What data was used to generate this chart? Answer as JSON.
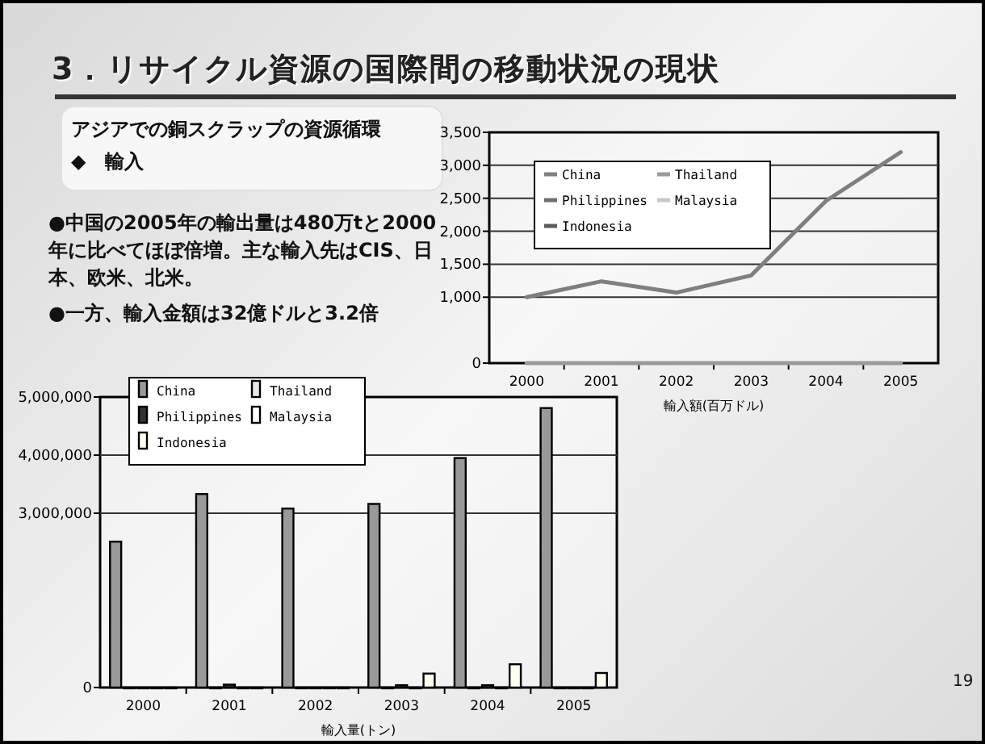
{
  "chart_data": [
    {
      "type": "other",
      "title": "3．リサイクル資源の国際間の移動状況の現状",
      "annotations": [
        "アジアでの銅スクラップの資源循環",
        "◆　輸入",
        "●中国の2005年の輸出量は480万tと2000年に比べてほぼ倍増。主な輸入先はCIS、日本、欧米、北米。",
        "●一方、輸入金額は32億ドルと3.2倍",
        "19"
      ]
    },
    {
      "type": "line",
      "xlabel": "輸入額(百万ドル)",
      "categories": [
        "2000",
        "2001",
        "2002",
        "2003",
        "2004",
        "2005"
      ],
      "series": [
        {
          "name": "China",
          "color": "#7f7f7f",
          "values": [
            1000,
            1240,
            1070,
            1330,
            2460,
            3200
          ]
        },
        {
          "name": "Thailand",
          "color": "#9a9a9a",
          "values": [
            0,
            0,
            0,
            0,
            0,
            0
          ]
        },
        {
          "name": "Philippines",
          "color": "#6e6e6e",
          "values": [
            null,
            null,
            null,
            null,
            null,
            null
          ]
        },
        {
          "name": "Malaysia",
          "color": "#c8c8c8",
          "values": [
            null,
            null,
            null,
            null,
            null,
            null
          ]
        },
        {
          "name": "Indonesia",
          "color": "#5a5a5a",
          "values": [
            null,
            null,
            null,
            null,
            null,
            null
          ]
        }
      ],
      "ylim": [
        0,
        3500
      ],
      "yticks": [
        0,
        {
          "value": 1000,
          "label": "1,000"
        },
        {
          "value": 1500,
          "label": "1,500"
        },
        {
          "value": 2000,
          "label": "2,000"
        },
        {
          "value": 2500,
          "label": "2,500"
        },
        {
          "value": 3000,
          "label": "3,000"
        },
        {
          "value": 3500,
          "label": "3,500"
        }
      ],
      "grid": "y",
      "legend": "top left"
    },
    {
      "type": "bar",
      "xlabel": "輸入量(トン)",
      "categories": [
        "2000",
        "2001",
        "2002",
        "2003",
        "2004",
        "2005"
      ],
      "series": [
        {
          "name": "China",
          "color": "#999999",
          "values": [
            2510000,
            3330000,
            3080000,
            3160000,
            3950000,
            4810000
          ]
        },
        {
          "name": "Thailand",
          "color": "#e6e6e6",
          "values": [
            0,
            0,
            0,
            0,
            0,
            0
          ]
        },
        {
          "name": "Philippines",
          "color": "#333333",
          "values": [
            0,
            50000,
            0,
            40000,
            40000,
            0
          ]
        },
        {
          "name": "Malaysia",
          "color": "#ffffff",
          "values": [
            0,
            0,
            0,
            0,
            0,
            0
          ]
        },
        {
          "name": "Indonesia",
          "color": "#fffff0",
          "values": [
            0,
            0,
            0,
            240000,
            400000,
            250000
          ]
        }
      ],
      "ylim": [
        0,
        5000000
      ],
      "yticks": [
        0,
        {
          "value": 3000000,
          "label": "3,000,000"
        },
        {
          "value": 4000000,
          "label": "4,000,000"
        },
        {
          "value": 5000000,
          "label": "5,000,000"
        }
      ],
      "grid": "y",
      "legend": "top left"
    }
  ]
}
